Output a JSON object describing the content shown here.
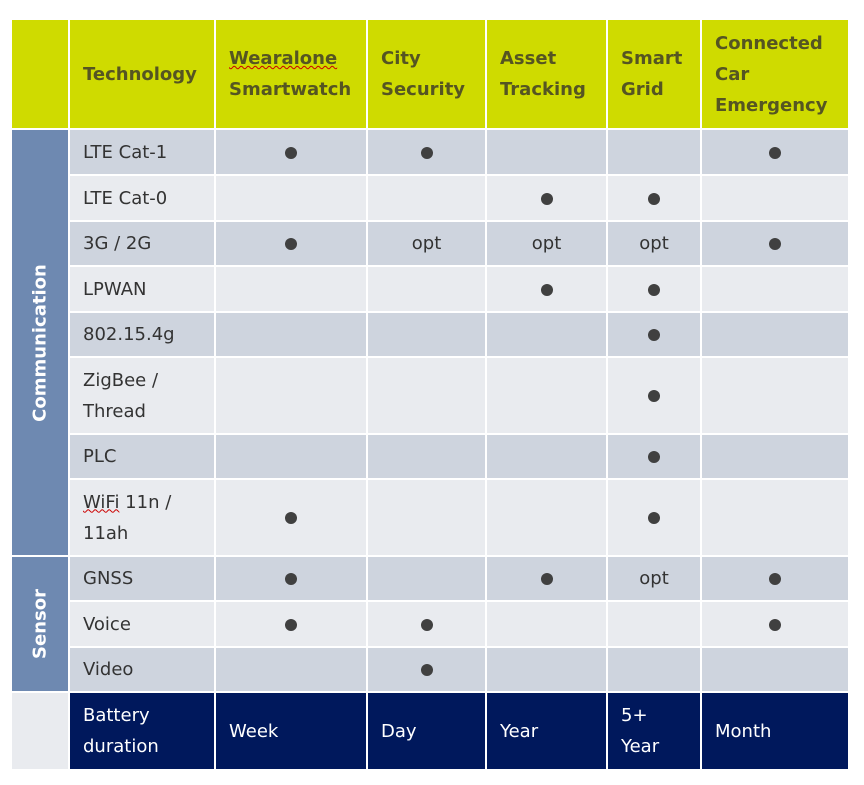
{
  "header": {
    "label": "Technology",
    "columns": [
      "Wearalone Smartwatch",
      "City Security",
      "Asset Tracking",
      "Smart Grid",
      "Connected Car Emergency"
    ],
    "column_lines": [
      [
        "Wearalone",
        "Smartwatch"
      ],
      [
        "City",
        "Security"
      ],
      [
        "Asset",
        "Tracking"
      ],
      [
        "Smart",
        "Grid"
      ],
      [
        "Connected",
        "Car",
        "Emergency"
      ]
    ]
  },
  "groups": [
    {
      "name": "Communication",
      "rows": [
        {
          "label": "LTE Cat-1",
          "lines": [
            "LTE Cat-1"
          ],
          "cells": [
            "dot",
            "dot",
            "",
            "",
            "dot"
          ]
        },
        {
          "label": "LTE Cat-0",
          "lines": [
            "LTE Cat-0"
          ],
          "cells": [
            "",
            "",
            "dot",
            "dot",
            ""
          ]
        },
        {
          "label": "3G / 2G",
          "lines": [
            "3G / 2G"
          ],
          "cells": [
            "dot",
            "opt",
            "opt",
            "opt",
            "dot"
          ]
        },
        {
          "label": "LPWAN",
          "lines": [
            "LPWAN"
          ],
          "cells": [
            "",
            "",
            "dot",
            "dot",
            ""
          ]
        },
        {
          "label": "802.15.4g",
          "lines": [
            "802.15.4g"
          ],
          "cells": [
            "",
            "",
            "",
            "dot",
            ""
          ]
        },
        {
          "label": "ZigBee / Thread",
          "lines": [
            "ZigBee /",
            "Thread"
          ],
          "cells": [
            "",
            "",
            "",
            "dot",
            ""
          ]
        },
        {
          "label": "PLC",
          "lines": [
            "PLC"
          ],
          "cells": [
            "",
            "",
            "",
            "dot",
            ""
          ]
        },
        {
          "label": "WiFi 11n / 11ah",
          "lines": [
            "WiFi 11n /",
            "11ah"
          ],
          "cells": [
            "dot",
            "",
            "",
            "dot",
            ""
          ]
        }
      ]
    },
    {
      "name": "Sensor",
      "rows": [
        {
          "label": "GNSS",
          "lines": [
            "GNSS"
          ],
          "cells": [
            "dot",
            "",
            "dot",
            "opt",
            "dot"
          ]
        },
        {
          "label": "Voice",
          "lines": [
            "Voice"
          ],
          "cells": [
            "dot",
            "dot",
            "",
            "",
            "dot"
          ]
        },
        {
          "label": "Video",
          "lines": [
            "Video"
          ],
          "cells": [
            "",
            "dot",
            "",
            "",
            ""
          ]
        }
      ]
    }
  ],
  "opt_text": "opt",
  "battery": {
    "label": "Battery duration",
    "label_lines": [
      "Battery",
      "duration"
    ],
    "values": [
      "Week",
      "Day",
      "Year",
      "5+ Year",
      "Month"
    ],
    "value_lines": [
      [
        "Week"
      ],
      [
        "Day"
      ],
      [
        "Year"
      ],
      [
        "5+",
        "Year"
      ],
      [
        "Month"
      ]
    ]
  },
  "colors": {
    "header_bg": "#cfdb00",
    "category_bg": "#6e89b1",
    "row_dark": "#ced4de",
    "row_light": "#e9ebef",
    "battery_bg": "#00185c",
    "dot": "#404040"
  }
}
